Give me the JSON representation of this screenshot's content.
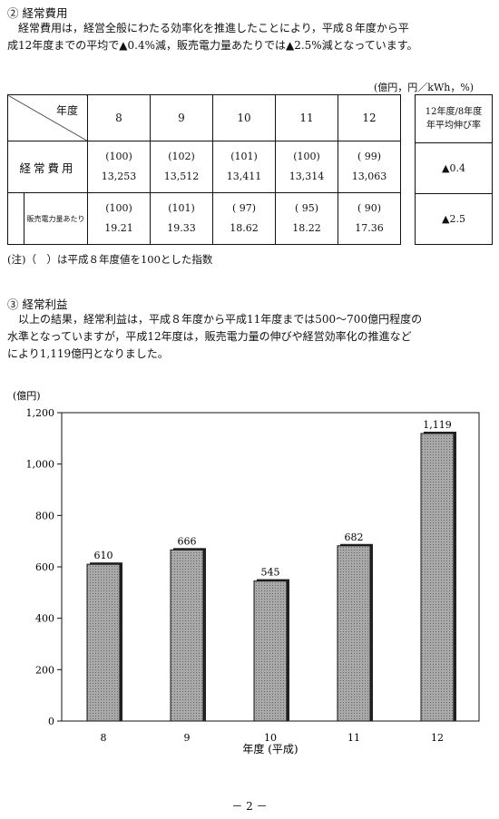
{
  "section2": {
    "heading": "② 経常費用",
    "para_line1": "経常費用は，経営全般にわたる効率化を推進したことにより，平成８年度から平",
    "para_line2": "成12年度までの平均で▲0.4%減，販売電力量あたりでは▲2.5%減となっています。"
  },
  "table": {
    "unit_note": "(億円，円／kWh，%)",
    "header_label": "年度",
    "years": [
      "8",
      "9",
      "10",
      "11",
      "12"
    ],
    "growth_header_line1": "12年度/8年度",
    "growth_header_line2": "年平均伸び率",
    "rows": [
      {
        "label": "経常費用",
        "index": [
          "(100)",
          "(102)",
          "(101)",
          "(100)",
          "( 99)"
        ],
        "values": [
          "13,253",
          "13,512",
          "13,411",
          "13,314",
          "13,063"
        ],
        "growth": "▲0.4"
      },
      {
        "label": "販売電力量あたり",
        "index": [
          "(100)",
          "(101)",
          "( 97)",
          "( 95)",
          "( 90)"
        ],
        "values": [
          "19.21",
          "19.33",
          "18.62",
          "18.22",
          "17.36"
        ],
        "growth": "▲2.5"
      }
    ],
    "note": "(注)（　）は平成８年度値を100とした指数"
  },
  "section3": {
    "heading": "③ 経常利益",
    "para_line1": "以上の結果，経常利益は，平成８年度から平成11年度までは500〜700億円程度の",
    "para_line2": "水準となっていますが，平成12年度は，販売電力量の伸びや経営効率化の推進など",
    "para_line3": "により1,119億円となりました。"
  },
  "chart_data": {
    "type": "bar",
    "categories": [
      "8",
      "9",
      "10",
      "11",
      "12"
    ],
    "values": [
      610,
      666,
      545,
      682,
      1119
    ],
    "value_labels": [
      "610",
      "666",
      "545",
      "682",
      "1,119"
    ],
    "ylabel": "(億円)",
    "xlabel": "年度 (平成)",
    "ylim": [
      0,
      1200
    ],
    "yticks": [
      0,
      200,
      400,
      600,
      800,
      1000,
      1200
    ],
    "ytick_labels": [
      "0",
      "200",
      "400",
      "600",
      "800",
      "1,000",
      "1,200"
    ],
    "bar_color": "#a9a9a9",
    "grid": false,
    "legend": "none"
  },
  "page_number": "－ 2 －"
}
